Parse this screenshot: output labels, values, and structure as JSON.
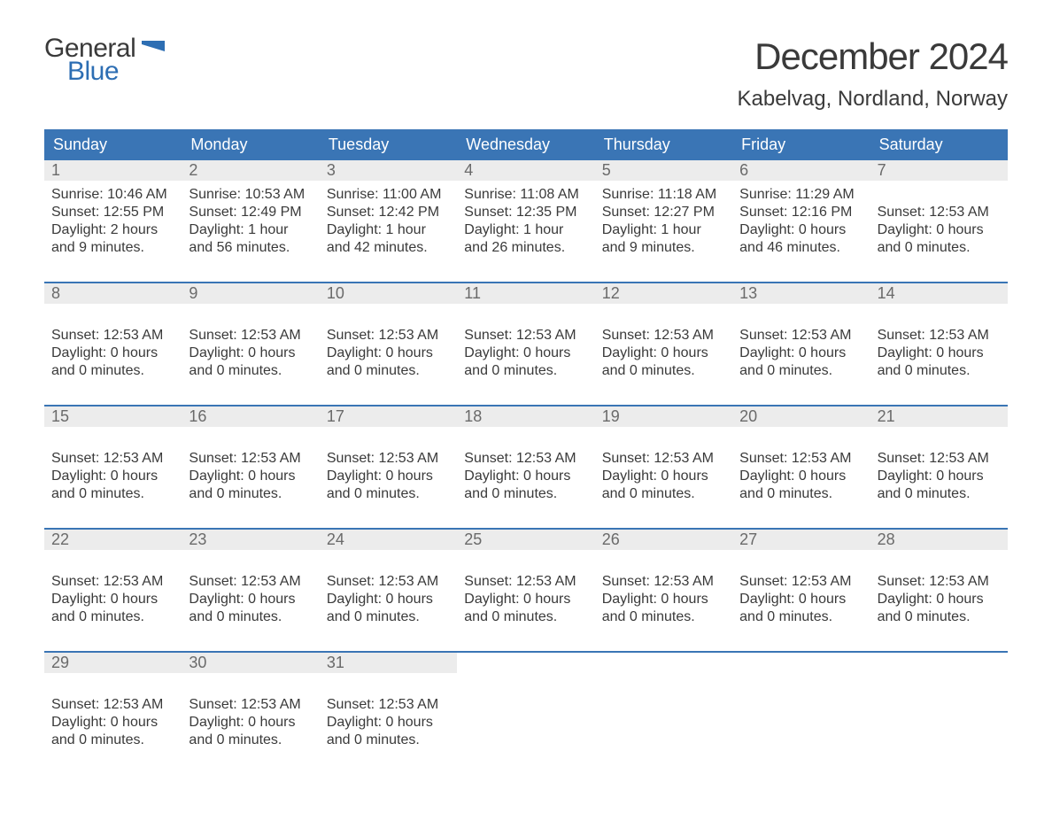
{
  "logo": {
    "text1": "General",
    "text2": "Blue",
    "flag_color": "#2d6eb3"
  },
  "title": "December 2024",
  "location": "Kabelvag, Nordland, Norway",
  "colors": {
    "header_bg": "#3a75b5",
    "header_text": "#ffffff",
    "daynum_bg": "#ececec",
    "daynum_text": "#6a6a6a",
    "body_text": "#3a3a3a",
    "rule": "#3a75b5",
    "page_bg": "#ffffff"
  },
  "typography": {
    "title_fontsize": 42,
    "location_fontsize": 24,
    "dow_fontsize": 18,
    "daynum_fontsize": 18,
    "body_fontsize": 16
  },
  "layout": {
    "columns": 7,
    "rows": 5
  },
  "days_of_week": [
    "Sunday",
    "Monday",
    "Tuesday",
    "Wednesday",
    "Thursday",
    "Friday",
    "Saturday"
  ],
  "weeks": [
    [
      {
        "n": "1",
        "lines": [
          "Sunrise: 10:46 AM",
          "Sunset: 12:55 PM",
          "Daylight: 2 hours and 9 minutes."
        ]
      },
      {
        "n": "2",
        "lines": [
          "Sunrise: 10:53 AM",
          "Sunset: 12:49 PM",
          "Daylight: 1 hour and 56 minutes."
        ]
      },
      {
        "n": "3",
        "lines": [
          "Sunrise: 11:00 AM",
          "Sunset: 12:42 PM",
          "Daylight: 1 hour and 42 minutes."
        ]
      },
      {
        "n": "4",
        "lines": [
          "Sunrise: 11:08 AM",
          "Sunset: 12:35 PM",
          "Daylight: 1 hour and 26 minutes."
        ]
      },
      {
        "n": "5",
        "lines": [
          "Sunrise: 11:18 AM",
          "Sunset: 12:27 PM",
          "Daylight: 1 hour and 9 minutes."
        ]
      },
      {
        "n": "6",
        "lines": [
          "Sunrise: 11:29 AM",
          "Sunset: 12:16 PM",
          "Daylight: 0 hours and 46 minutes."
        ]
      },
      {
        "n": "7",
        "lines": [
          "",
          "Sunset: 12:53 AM",
          "Daylight: 0 hours and 0 minutes."
        ]
      }
    ],
    [
      {
        "n": "8",
        "lines": [
          "",
          "Sunset: 12:53 AM",
          "Daylight: 0 hours and 0 minutes."
        ]
      },
      {
        "n": "9",
        "lines": [
          "",
          "Sunset: 12:53 AM",
          "Daylight: 0 hours and 0 minutes."
        ]
      },
      {
        "n": "10",
        "lines": [
          "",
          "Sunset: 12:53 AM",
          "Daylight: 0 hours and 0 minutes."
        ]
      },
      {
        "n": "11",
        "lines": [
          "",
          "Sunset: 12:53 AM",
          "Daylight: 0 hours and 0 minutes."
        ]
      },
      {
        "n": "12",
        "lines": [
          "",
          "Sunset: 12:53 AM",
          "Daylight: 0 hours and 0 minutes."
        ]
      },
      {
        "n": "13",
        "lines": [
          "",
          "Sunset: 12:53 AM",
          "Daylight: 0 hours and 0 minutes."
        ]
      },
      {
        "n": "14",
        "lines": [
          "",
          "Sunset: 12:53 AM",
          "Daylight: 0 hours and 0 minutes."
        ]
      }
    ],
    [
      {
        "n": "15",
        "lines": [
          "",
          "Sunset: 12:53 AM",
          "Daylight: 0 hours and 0 minutes."
        ]
      },
      {
        "n": "16",
        "lines": [
          "",
          "Sunset: 12:53 AM",
          "Daylight: 0 hours and 0 minutes."
        ]
      },
      {
        "n": "17",
        "lines": [
          "",
          "Sunset: 12:53 AM",
          "Daylight: 0 hours and 0 minutes."
        ]
      },
      {
        "n": "18",
        "lines": [
          "",
          "Sunset: 12:53 AM",
          "Daylight: 0 hours and 0 minutes."
        ]
      },
      {
        "n": "19",
        "lines": [
          "",
          "Sunset: 12:53 AM",
          "Daylight: 0 hours and 0 minutes."
        ]
      },
      {
        "n": "20",
        "lines": [
          "",
          "Sunset: 12:53 AM",
          "Daylight: 0 hours and 0 minutes."
        ]
      },
      {
        "n": "21",
        "lines": [
          "",
          "Sunset: 12:53 AM",
          "Daylight: 0 hours and 0 minutes."
        ]
      }
    ],
    [
      {
        "n": "22",
        "lines": [
          "",
          "Sunset: 12:53 AM",
          "Daylight: 0 hours and 0 minutes."
        ]
      },
      {
        "n": "23",
        "lines": [
          "",
          "Sunset: 12:53 AM",
          "Daylight: 0 hours and 0 minutes."
        ]
      },
      {
        "n": "24",
        "lines": [
          "",
          "Sunset: 12:53 AM",
          "Daylight: 0 hours and 0 minutes."
        ]
      },
      {
        "n": "25",
        "lines": [
          "",
          "Sunset: 12:53 AM",
          "Daylight: 0 hours and 0 minutes."
        ]
      },
      {
        "n": "26",
        "lines": [
          "",
          "Sunset: 12:53 AM",
          "Daylight: 0 hours and 0 minutes."
        ]
      },
      {
        "n": "27",
        "lines": [
          "",
          "Sunset: 12:53 AM",
          "Daylight: 0 hours and 0 minutes."
        ]
      },
      {
        "n": "28",
        "lines": [
          "",
          "Sunset: 12:53 AM",
          "Daylight: 0 hours and 0 minutes."
        ]
      }
    ],
    [
      {
        "n": "29",
        "lines": [
          "",
          "Sunset: 12:53 AM",
          "Daylight: 0 hours and 0 minutes."
        ]
      },
      {
        "n": "30",
        "lines": [
          "",
          "Sunset: 12:53 AM",
          "Daylight: 0 hours and 0 minutes."
        ]
      },
      {
        "n": "31",
        "lines": [
          "",
          "Sunset: 12:53 AM",
          "Daylight: 0 hours and 0 minutes."
        ]
      },
      {
        "n": "",
        "lines": []
      },
      {
        "n": "",
        "lines": []
      },
      {
        "n": "",
        "lines": []
      },
      {
        "n": "",
        "lines": []
      }
    ]
  ]
}
